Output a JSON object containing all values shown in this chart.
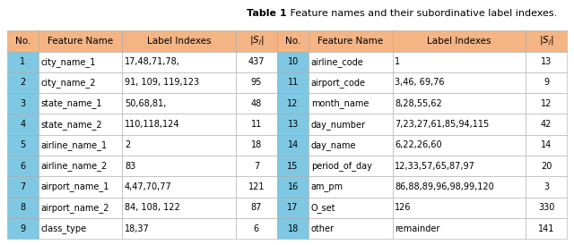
{
  "title_bold": "Table 1",
  "title_rest": " Feature names and their subordinative label indexes.",
  "headers": [
    "No.",
    "Feature Name",
    "Label Indexes",
    "|S_j|",
    "No.",
    "Feature Name",
    "Label Indexes",
    "|S_j|"
  ],
  "rows": [
    [
      "1",
      "city_name_1",
      "17,48,71,78,",
      "437",
      "10",
      "airline_code",
      "1",
      "13"
    ],
    [
      "2",
      "city_name_2",
      "91, 109, 119,123",
      "95",
      "11",
      "airport_code",
      "3,46, 69,76",
      "9"
    ],
    [
      "3",
      "state_name_1",
      "50,68,81,",
      "48",
      "12",
      "month_name",
      "8,28,55,62",
      "12"
    ],
    [
      "4",
      "state_name_2",
      "110,118,124",
      "11",
      "13",
      "day_number",
      "7,23,27,61,85,94,115",
      "42"
    ],
    [
      "5",
      "airline_name_1",
      "2",
      "18",
      "14",
      "day_name",
      "6,22,26,60",
      "14"
    ],
    [
      "6",
      "airline_name_2",
      "83",
      "7",
      "15",
      "period_of_day",
      "12,33,57,65,87,97",
      "20"
    ],
    [
      "7",
      "airport_name_1",
      "4,47,70,77",
      "121",
      "16",
      "am_pm",
      "86,88,89,96,98,99,120",
      "3"
    ],
    [
      "8",
      "airport_name_2",
      "84, 108, 122",
      "87",
      "17",
      "O_set",
      "126",
      "330"
    ],
    [
      "9",
      "class_type",
      "18,37",
      "6",
      "18",
      "other",
      "remainder",
      "141"
    ]
  ],
  "col_widths_rel": [
    3.2,
    8.5,
    11.5,
    4.2,
    3.2,
    8.5,
    13.5,
    4.2
  ],
  "header_color": "#F5B483",
  "no_col_color": "#7EC8E3",
  "data_color": "#FFFFFF",
  "border_color": "#AAAAAA",
  "title_fontsize": 8.0,
  "header_fontsize": 7.5,
  "data_fontsize": 7.0,
  "figsize": [
    6.4,
    2.74
  ],
  "dpi": 100
}
